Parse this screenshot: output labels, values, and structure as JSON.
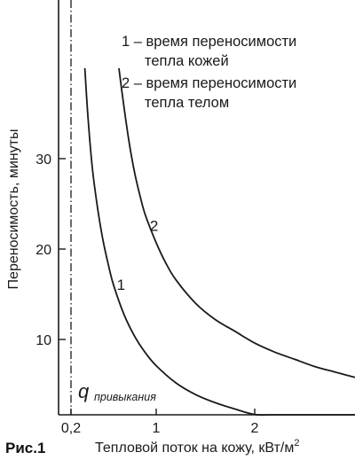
{
  "chart_data": {
    "type": "line",
    "title": "",
    "figure_label": "Рис.1",
    "xlabel": "Тепловой поток на кожу, кВт/м",
    "xlabel_superscript": "2",
    "ylabel": "Переносимость, минуты",
    "xlim": [
      0,
      3
    ],
    "ylim": [
      0,
      40
    ],
    "x_ticks": [
      0.2,
      1,
      2
    ],
    "x_tick_labels": [
      "0,2",
      "1",
      "2"
    ],
    "y_ticks": [
      10,
      20,
      30
    ],
    "y_tick_labels": [
      "10",
      "20",
      "30"
    ],
    "grid": false,
    "legend": {
      "position": "top-right",
      "entries": [
        "1 – время переносимости тепла кожей",
        "2 – время переносимости тепла телом"
      ],
      "lines": [
        [
          "1 – время переносимости",
          "тепла кожей"
        ],
        [
          "2 – время переносимости",
          "тепла телом"
        ]
      ]
    },
    "reference_line": {
      "x": 0.2,
      "style": "dash-dot",
      "label_main": "q",
      "label_sub": "привыкания"
    },
    "series": [
      {
        "label": "1",
        "color": "#1a1a1a",
        "x": [
          0.33,
          0.36,
          0.4,
          0.45,
          0.5,
          0.55,
          0.6,
          0.7,
          0.8,
          0.9,
          1.0,
          1.2,
          1.4,
          1.6,
          1.8,
          2.0,
          2.2,
          2.5,
          2.8,
          3.0
        ],
        "y": [
          40,
          34.5,
          29,
          24.5,
          21,
          18.3,
          16,
          12.7,
          10.3,
          8.5,
          7.1,
          5.2,
          3.9,
          3.0,
          2.3,
          1.7,
          1.2,
          0.7,
          0.4,
          0.3
        ]
      },
      {
        "label": "2",
        "color": "#1a1a1a",
        "x": [
          0.65,
          0.7,
          0.75,
          0.8,
          0.85,
          0.9,
          1.0,
          1.1,
          1.2,
          1.4,
          1.6,
          1.8,
          2.0,
          2.2,
          2.4,
          2.6,
          2.8,
          3.0
        ],
        "y": [
          40,
          35.5,
          31.5,
          28.3,
          25.8,
          23.7,
          20.7,
          18.4,
          16.6,
          14.0,
          12.2,
          10.9,
          9.6,
          8.6,
          7.8,
          7.0,
          6.4,
          5.8
        ]
      }
    ],
    "curve_labels": [
      {
        "series": "1",
        "text": "1",
        "x": 0.67,
        "y": 15.5
      },
      {
        "series": "2",
        "text": "2",
        "x": 0.98,
        "y": 22.0
      }
    ]
  }
}
